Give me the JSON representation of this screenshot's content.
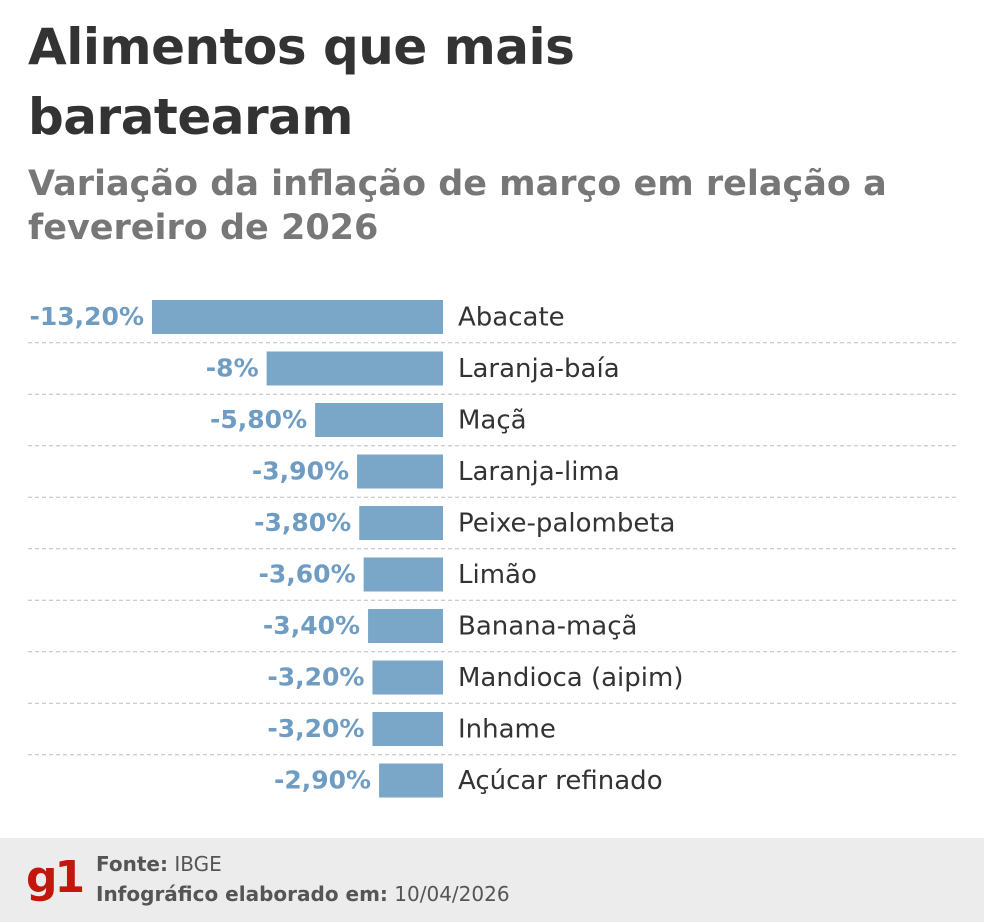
{
  "chart_data": {
    "type": "bar",
    "orientation": "horizontal",
    "title": "Alimentos que mais baratearam",
    "subtitle": "Variação da inflação de março em relação a fevereiro de 2026",
    "categories": [
      "Abacate",
      "Laranja-baía",
      "Maçã",
      "Laranja-lima",
      "Peixe-palombeta",
      "Limão",
      "Banana-maçã",
      "Mandioca (aipim)",
      "Inhame",
      "Açúcar refinado"
    ],
    "values": [
      -13.2,
      -8,
      -5.8,
      -3.9,
      -3.8,
      -3.6,
      -3.4,
      -3.2,
      -3.2,
      -2.9
    ],
    "value_labels": [
      "-13,20%",
      "-8%",
      "-5,80%",
      "-3,90%",
      "-3,80%",
      "-3,60%",
      "-3,40%",
      "-3,20%",
      "-3,20%",
      "-2,90%"
    ],
    "color": "#7aa6c8"
  },
  "footer": {
    "logo": "g1",
    "source_label": "Fonte:",
    "source": "IBGE",
    "date_label": "Infográfico elaborado em:",
    "date": "10/04/2026"
  }
}
